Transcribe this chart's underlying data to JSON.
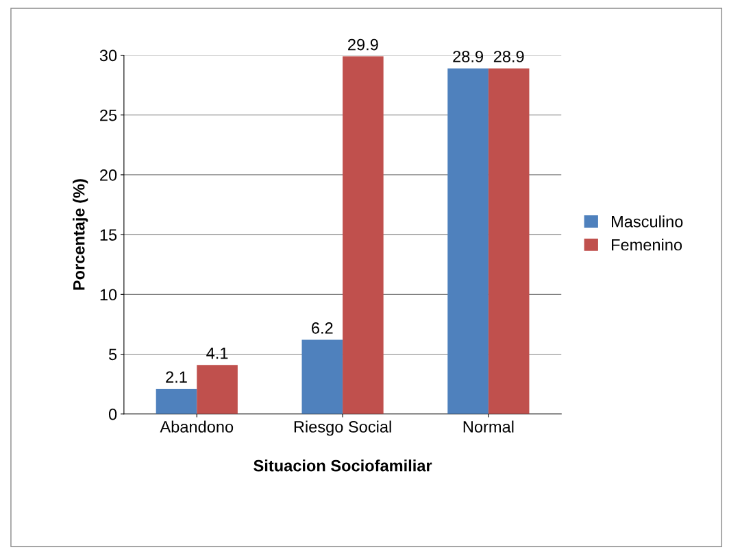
{
  "chart_data": {
    "type": "bar",
    "xlabel": "Situacion Sociofamiliar",
    "ylabel": "Porcentaje (%)",
    "categories": [
      "Abandono",
      "Riesgo Social",
      "Normal"
    ],
    "series": [
      {
        "name": "Masculino",
        "color": "#4f81bd",
        "values": [
          2.1,
          6.2,
          28.9
        ]
      },
      {
        "name": "Femenino",
        "color": "#c0504d",
        "values": [
          4.1,
          29.9,
          28.9
        ]
      }
    ],
    "ylim": [
      0,
      30
    ],
    "yticks": [
      0,
      5,
      10,
      15,
      20,
      25,
      30
    ],
    "grid": "y",
    "legend": "right",
    "data_labels": true
  }
}
